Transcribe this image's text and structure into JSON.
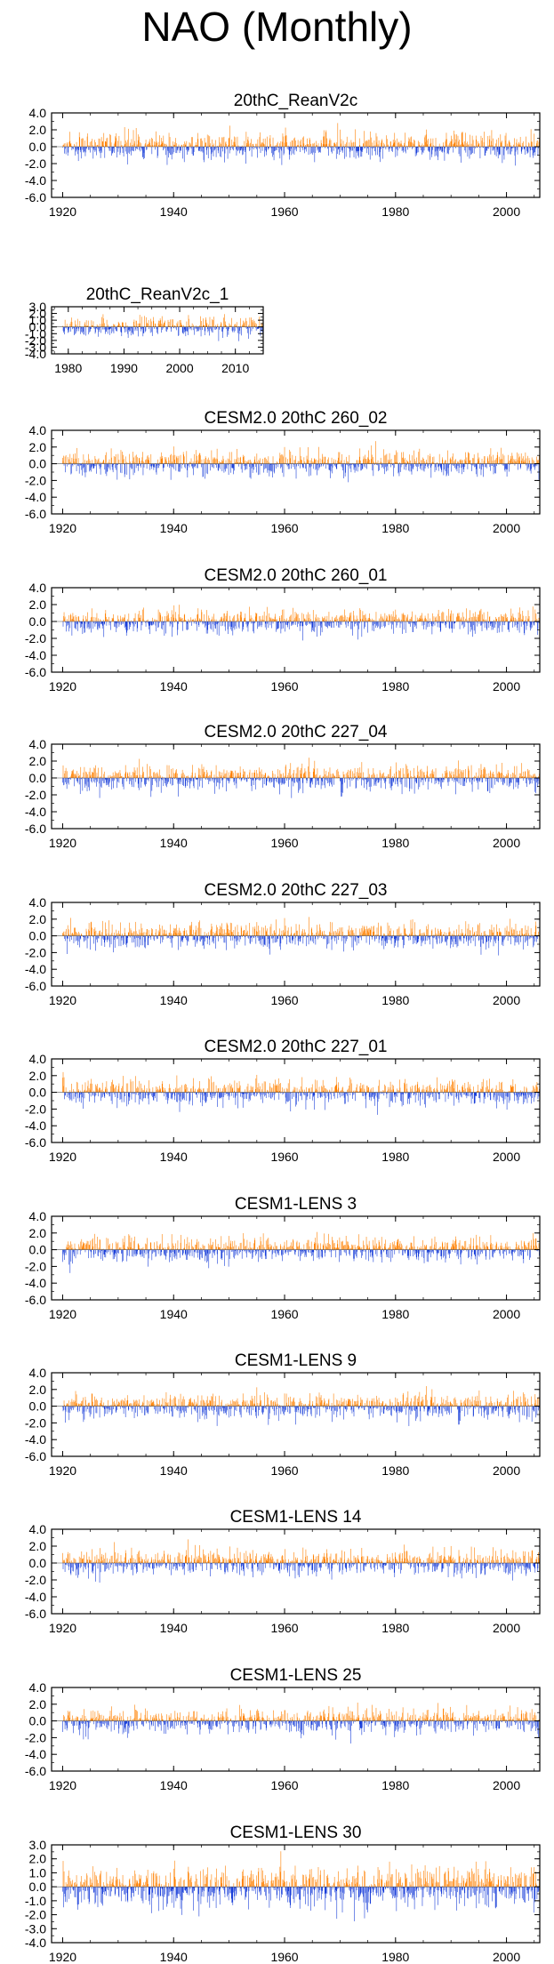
{
  "title": "NAO (Monthly)",
  "colors": {
    "positive": "#ff8000",
    "negative": "#1a3fd9",
    "axis": "#000000"
  },
  "chart_data": [
    {
      "type": "bar",
      "title": "20thC_ReanV2c",
      "x_range": [
        1918,
        2006
      ],
      "ylim": [
        -6.0,
        4.0
      ],
      "yticks": [
        4.0,
        2.0,
        0.0,
        -2.0,
        -4.0,
        -6.0
      ],
      "ytick_labels": [
        "4.0",
        "2.0",
        "0.0",
        "-2.0",
        "-4.0",
        "-6.0"
      ],
      "xticks": [
        1920,
        1940,
        1960,
        1980,
        2000
      ],
      "xtick_labels": [
        "1920",
        "1940",
        "1960",
        "1980",
        "2000"
      ],
      "seed": 11,
      "values": []
    },
    {
      "type": "bar",
      "title": "20thC_ReanV2c_1",
      "x_range": [
        1977,
        2015
      ],
      "ylim": [
        -4.0,
        3.0
      ],
      "yticks": [
        3.0,
        2.0,
        1.0,
        0.0,
        -1.0,
        -2.0,
        -3.0,
        -4.0
      ],
      "ytick_labels": [
        "3.0",
        "2.0",
        "1.0",
        "0.0",
        "-1.0",
        "-2.0",
        "-3.0",
        "-4.0"
      ],
      "xticks": [
        1980,
        1990,
        2000,
        2010
      ],
      "xtick_labels": [
        "1980",
        "1990",
        "2000",
        "2010"
      ],
      "seed": 23,
      "values": []
    },
    {
      "type": "bar",
      "title": "CESM2.0 20thC 260_02",
      "x_range": [
        1918,
        2006
      ],
      "ylim": [
        -6.0,
        4.0
      ],
      "yticks": [
        4.0,
        2.0,
        0.0,
        -2.0,
        -4.0,
        -6.0
      ],
      "ytick_labels": [
        "4.0",
        "2.0",
        "0.0",
        "-2.0",
        "-4.0",
        "-6.0"
      ],
      "xticks": [
        1920,
        1940,
        1960,
        1980,
        2000
      ],
      "xtick_labels": [
        "1920",
        "1940",
        "1960",
        "1980",
        "2000"
      ],
      "seed": 37,
      "values": []
    },
    {
      "type": "bar",
      "title": "CESM2.0 20thC 260_01",
      "x_range": [
        1918,
        2006
      ],
      "ylim": [
        -6.0,
        4.0
      ],
      "yticks": [
        4.0,
        2.0,
        0.0,
        -2.0,
        -4.0,
        -6.0
      ],
      "ytick_labels": [
        "4.0",
        "2.0",
        "0.0",
        "-2.0",
        "-4.0",
        "-6.0"
      ],
      "xticks": [
        1920,
        1940,
        1960,
        1980,
        2000
      ],
      "xtick_labels": [
        "1920",
        "1940",
        "1960",
        "1980",
        "2000"
      ],
      "seed": 41,
      "values": []
    },
    {
      "type": "bar",
      "title": "CESM2.0 20thC 227_04",
      "x_range": [
        1918,
        2006
      ],
      "ylim": [
        -6.0,
        4.0
      ],
      "yticks": [
        4.0,
        2.0,
        0.0,
        -2.0,
        -4.0,
        -6.0
      ],
      "ytick_labels": [
        "4.0",
        "2.0",
        "0.0",
        "-2.0",
        "-4.0",
        "-6.0"
      ],
      "xticks": [
        1920,
        1940,
        1960,
        1980,
        2000
      ],
      "xtick_labels": [
        "1920",
        "1940",
        "1960",
        "1980",
        "2000"
      ],
      "seed": 53,
      "values": []
    },
    {
      "type": "bar",
      "title": "CESM2.0 20thC 227_03",
      "x_range": [
        1918,
        2006
      ],
      "ylim": [
        -6.0,
        4.0
      ],
      "yticks": [
        4.0,
        2.0,
        0.0,
        -2.0,
        -4.0,
        -6.0
      ],
      "ytick_labels": [
        "4.0",
        "2.0",
        "0.0",
        "-2.0",
        "-4.0",
        "-6.0"
      ],
      "xticks": [
        1920,
        1940,
        1960,
        1980,
        2000
      ],
      "xtick_labels": [
        "1920",
        "1940",
        "1960",
        "1980",
        "2000"
      ],
      "seed": 67,
      "values": []
    },
    {
      "type": "bar",
      "title": "CESM2.0 20thC 227_01",
      "x_range": [
        1918,
        2006
      ],
      "ylim": [
        -6.0,
        4.0
      ],
      "yticks": [
        4.0,
        2.0,
        0.0,
        -2.0,
        -4.0,
        -6.0
      ],
      "ytick_labels": [
        "4.0",
        "2.0",
        "0.0",
        "-2.0",
        "-4.0",
        "-6.0"
      ],
      "xticks": [
        1920,
        1940,
        1960,
        1980,
        2000
      ],
      "xtick_labels": [
        "1920",
        "1940",
        "1960",
        "1980",
        "2000"
      ],
      "seed": 71,
      "values": []
    },
    {
      "type": "bar",
      "title": "CESM1-LENS 3",
      "x_range": [
        1918,
        2006
      ],
      "ylim": [
        -6.0,
        4.0
      ],
      "yticks": [
        4.0,
        2.0,
        0.0,
        -2.0,
        -4.0,
        -6.0
      ],
      "ytick_labels": [
        "4.0",
        "2.0",
        "0.0",
        "-2.0",
        "-4.0",
        "-6.0"
      ],
      "xticks": [
        1920,
        1940,
        1960,
        1980,
        2000
      ],
      "xtick_labels": [
        "1920",
        "1940",
        "1960",
        "1980",
        "2000"
      ],
      "seed": 83,
      "values": []
    },
    {
      "type": "bar",
      "title": "CESM1-LENS 9",
      "x_range": [
        1918,
        2006
      ],
      "ylim": [
        -6.0,
        4.0
      ],
      "yticks": [
        4.0,
        2.0,
        0.0,
        -2.0,
        -4.0,
        -6.0
      ],
      "ytick_labels": [
        "4.0",
        "2.0",
        "0.0",
        "-2.0",
        "-4.0",
        "-6.0"
      ],
      "xticks": [
        1920,
        1940,
        1960,
        1980,
        2000
      ],
      "xtick_labels": [
        "1920",
        "1940",
        "1960",
        "1980",
        "2000"
      ],
      "seed": 97,
      "values": []
    },
    {
      "type": "bar",
      "title": "CESM1-LENS 14",
      "x_range": [
        1918,
        2006
      ],
      "ylim": [
        -6.0,
        4.0
      ],
      "yticks": [
        4.0,
        2.0,
        0.0,
        -2.0,
        -4.0,
        -6.0
      ],
      "ytick_labels": [
        "4.0",
        "2.0",
        "0.0",
        "-2.0",
        "-4.0",
        "-6.0"
      ],
      "xticks": [
        1920,
        1940,
        1960,
        1980,
        2000
      ],
      "xtick_labels": [
        "1920",
        "1940",
        "1960",
        "1980",
        "2000"
      ],
      "seed": 101,
      "values": []
    },
    {
      "type": "bar",
      "title": "CESM1-LENS 25",
      "x_range": [
        1918,
        2006
      ],
      "ylim": [
        -6.0,
        4.0
      ],
      "yticks": [
        4.0,
        2.0,
        0.0,
        -2.0,
        -4.0,
        -6.0
      ],
      "ytick_labels": [
        "4.0",
        "2.0",
        "0.0",
        "-2.0",
        "-4.0",
        "-6.0"
      ],
      "xticks": [
        1920,
        1940,
        1960,
        1980,
        2000
      ],
      "xtick_labels": [
        "1920",
        "1940",
        "1960",
        "1980",
        "2000"
      ],
      "seed": 113,
      "values": []
    },
    {
      "type": "bar",
      "title": "CESM1-LENS 30",
      "x_range": [
        1918,
        2006
      ],
      "ylim": [
        -4.0,
        3.0
      ],
      "yticks": [
        3.0,
        2.0,
        1.0,
        0.0,
        -1.0,
        -2.0,
        -3.0,
        -4.0
      ],
      "ytick_labels": [
        "3.0",
        "2.0",
        "1.0",
        "0.0",
        "-1.0",
        "-2.0",
        "-3.0",
        "-4.0"
      ],
      "xticks": [
        1920,
        1940,
        1960,
        1980,
        2000
      ],
      "xtick_labels": [
        "1920",
        "1940",
        "1960",
        "1980",
        "2000"
      ],
      "seed": 127,
      "values": []
    }
  ]
}
